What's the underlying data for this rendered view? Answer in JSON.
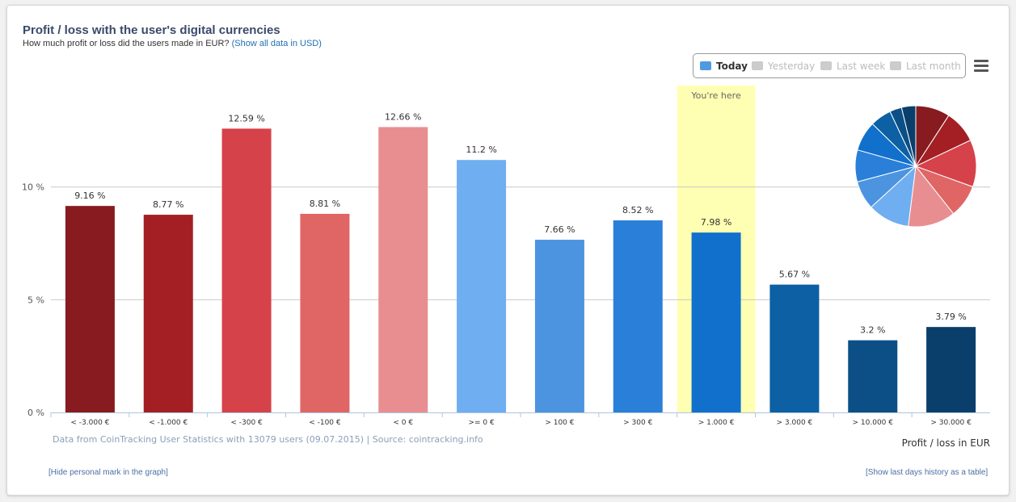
{
  "header": {
    "title": "Profit / loss with the user's digital currencies",
    "subtitle": "How much profit or loss did the users made in EUR?",
    "subtitle_link": "(Show all data in USD)"
  },
  "legend": {
    "items": [
      {
        "label": "Today",
        "active": true,
        "color": "#4e9be0"
      },
      {
        "label": "Yesterday",
        "active": false,
        "color": "#cccccc"
      },
      {
        "label": "Last week",
        "active": false,
        "color": "#cccccc"
      },
      {
        "label": "Last month",
        "active": false,
        "color": "#cccccc"
      }
    ]
  },
  "chart_data": {
    "type": "bar",
    "categories": [
      "< -3.000 €",
      "< -1.000 €",
      "< -300 €",
      "< -100 €",
      "< 0 €",
      ">= 0 €",
      "> 100 €",
      "> 300 €",
      "> 1.000 €",
      "> 3.000 €",
      "> 10.000 €",
      "> 30.000 €"
    ],
    "values": [
      9.16,
      8.77,
      12.59,
      8.81,
      12.66,
      11.2,
      7.66,
      8.52,
      7.98,
      5.67,
      3.2,
      3.79
    ],
    "value_labels": [
      "9.16 %",
      "8.77 %",
      "12.59 %",
      "8.81 %",
      "12.66 %",
      "11.2 %",
      "7.66 %",
      "8.52 %",
      "7.98 %",
      "5.67 %",
      "3.2 %",
      "3.79 %"
    ],
    "colors": [
      "#871b1f",
      "#a31f24",
      "#d6424a",
      "#e06666",
      "#e88e90",
      "#6faef0",
      "#4c94e0",
      "#2a7fd8",
      "#1070cc",
      "#0c60a3",
      "#0b4f86",
      "#0a3f6c"
    ],
    "ylim": [
      0,
      14
    ],
    "yticks": [
      {
        "value": 0,
        "label": "0 %"
      },
      {
        "value": 5,
        "label": "5 %"
      },
      {
        "value": 10,
        "label": "10 %"
      }
    ],
    "xlabel": "Profit / loss in EUR",
    "ylabel": "",
    "highlight_category_index": 8,
    "highlight_label": "You're here",
    "highlight_color": "#ffffb3",
    "grid": true,
    "legend_position": "top-right",
    "pie": {
      "position": "top-right",
      "values_from_bars": true
    }
  },
  "credits": "Data from CoinTracking User Statistics with 13079 users (09.07.2015) | Source: cointracking.info",
  "footer": {
    "left_link": "[Hide personal mark in the graph]",
    "right_link": "[Show last days history as a table]"
  }
}
